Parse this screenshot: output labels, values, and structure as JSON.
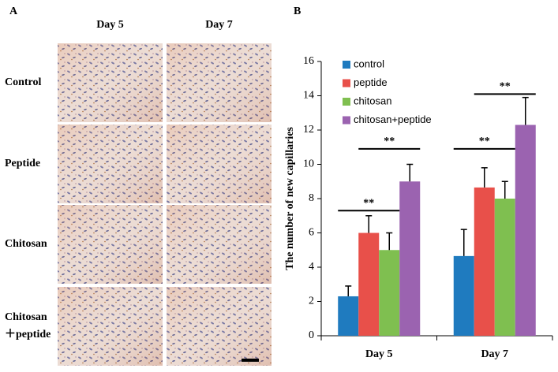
{
  "panel_a": {
    "label": "A",
    "columns": [
      "Day 5",
      "Day 7"
    ],
    "rows": [
      [
        "Control"
      ],
      [
        "Peptide"
      ],
      [
        "Chitosan"
      ],
      [
        "Chitosan",
        "＋peptide"
      ]
    ]
  },
  "chart_data": {
    "type": "bar",
    "label": "B",
    "y_label": "The number of new capillaries",
    "categories": [
      "Day 5",
      "Day 7"
    ],
    "series": [
      {
        "name": "control",
        "color": "#1f7bbf",
        "values": [
          2.3,
          4.65
        ],
        "errors": [
          0.6,
          1.55
        ]
      },
      {
        "name": "peptide",
        "color": "#e8504a",
        "values": [
          6.0,
          8.65
        ],
        "errors": [
          1.0,
          1.15
        ]
      },
      {
        "name": "chitosan",
        "color": "#7fbf50",
        "values": [
          5.0,
          8.0
        ],
        "errors": [
          1.0,
          1.0
        ]
      },
      {
        "name": "chitosan+peptide",
        "color": "#9b63b0",
        "values": [
          9.0,
          12.3
        ],
        "errors": [
          1.0,
          1.6
        ]
      }
    ],
    "ylim": [
      0,
      16
    ],
    "yticks": [
      0,
      2,
      4,
      6,
      8,
      10,
      12,
      14,
      16
    ],
    "legend": "top-left",
    "annotations": [
      {
        "text": "**",
        "category": 0,
        "from": 0,
        "to": 2,
        "y": 7.3
      },
      {
        "text": "**",
        "category": 0,
        "from": 1,
        "to": 3,
        "y": 10.9
      },
      {
        "text": "**",
        "category": 1,
        "from": 0,
        "to": 2,
        "y": 10.9
      },
      {
        "text": "**",
        "category": 1,
        "from": 1,
        "to": 3,
        "y": 14.1
      }
    ]
  }
}
